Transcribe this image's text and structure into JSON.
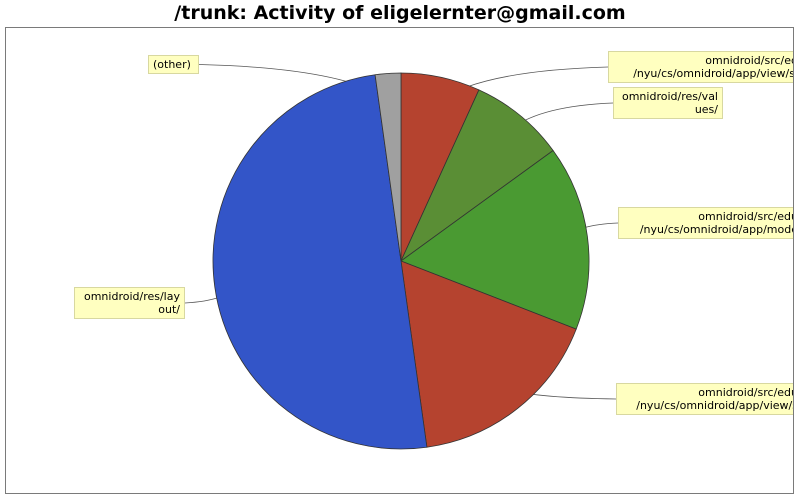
{
  "chart_data": {
    "type": "pie",
    "title": "/trunk: Activity of eligelernter@gmail.com",
    "slices": [
      {
        "label_lines": [
          "omnidroid/src/ed",
          "/nyu/cs/omnidroid/app/view/si"
        ],
        "value": 6.8,
        "color": "#b5432f"
      },
      {
        "label_lines": [
          "omnidroid/res/val",
          "ues/"
        ],
        "value": 8.2,
        "color": "#5a8e35"
      },
      {
        "label_lines": [
          "omnidroid/src/edu",
          "/nyu/cs/omnidroid/app/mode"
        ],
        "value": 15.9,
        "color": "#4a9a32"
      },
      {
        "label_lines": [
          "omnidroid/src/edu",
          "/nyu/cs/omnidroid/app/view/s"
        ],
        "value": 16.9,
        "color": "#b5432f"
      },
      {
        "label_lines": [
          "omnidroid/res/lay",
          "out/"
        ],
        "value": 50.0,
        "color": "#3355c8"
      },
      {
        "label_lines": [
          "(other)"
        ],
        "value": 2.2,
        "color": "#a0a0a0"
      }
    ]
  }
}
